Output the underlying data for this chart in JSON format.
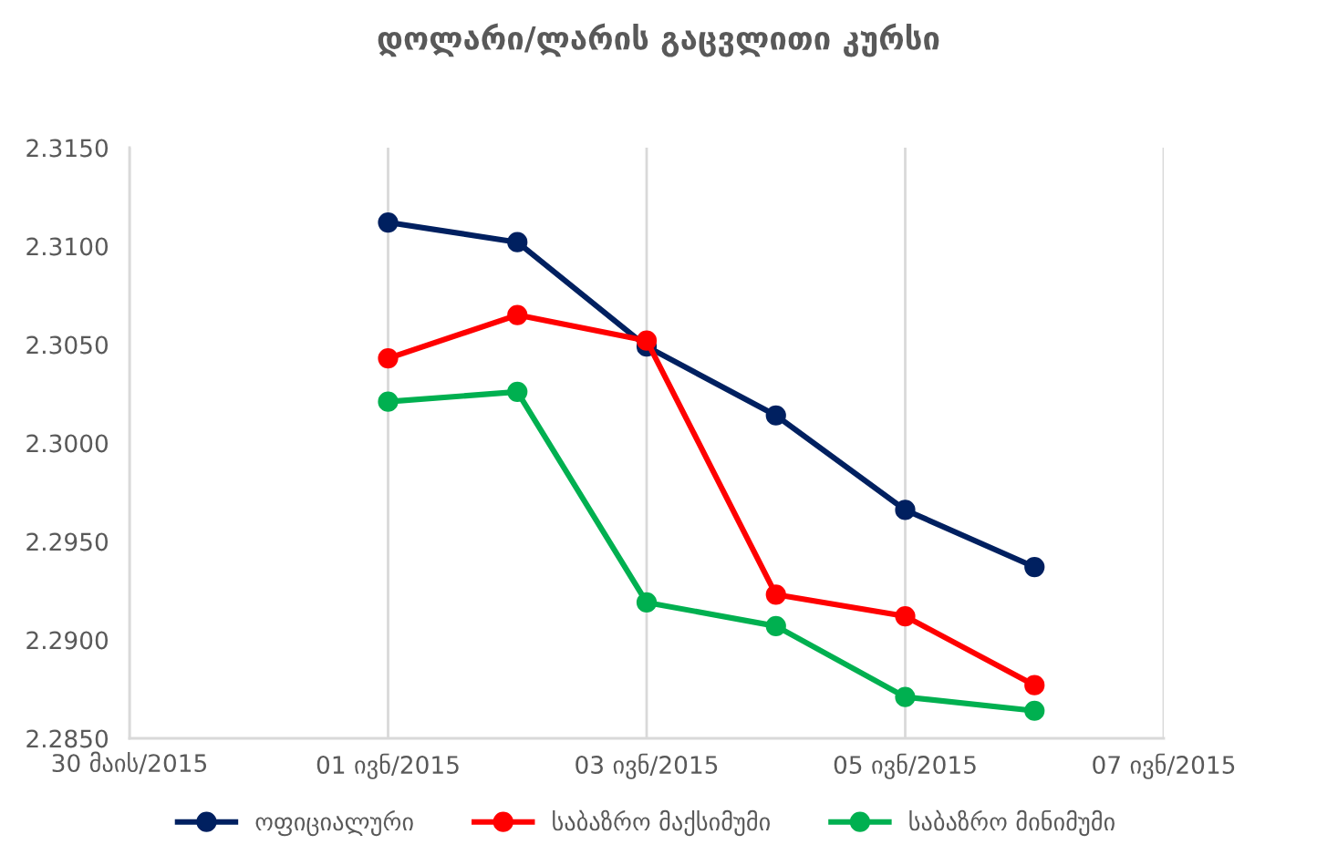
{
  "chart_data": {
    "type": "line",
    "title": "დოლარი/ლარის გაცვლითი კურსი",
    "x": [
      "2015-06-01",
      "2015-06-02",
      "2015-06-03",
      "2015-06-04",
      "2015-06-05",
      "2015-06-06"
    ],
    "series": [
      {
        "name": "ოფიციალური",
        "color": "#002060",
        "values": [
          2.3112,
          2.3102,
          2.3049,
          2.3014,
          2.2966,
          2.2937
        ]
      },
      {
        "name": "საბაზრო მაქსიმუმი",
        "color": "#ff0000",
        "values": [
          2.3043,
          2.3065,
          2.3052,
          2.2923,
          2.2912,
          2.2877
        ]
      },
      {
        "name": "საბაზრო მინიმუმი",
        "color": "#00b050",
        "values": [
          2.3021,
          2.3026,
          2.2919,
          2.2907,
          2.2871,
          2.2864
        ]
      }
    ],
    "xlim": [
      "2015-05-30",
      "2015-06-07"
    ],
    "xticks": [
      {
        "value": "2015-05-30",
        "label": "30 მაის/2015"
      },
      {
        "value": "2015-06-01",
        "label": "01 ივნ/2015"
      },
      {
        "value": "2015-06-03",
        "label": "03 ივნ/2015"
      },
      {
        "value": "2015-06-05",
        "label": "05 ივნ/2015"
      },
      {
        "value": "2015-06-07",
        "label": "07 ივნ/2015"
      }
    ],
    "ylim": [
      2.285,
      2.315
    ],
    "yticks": [
      {
        "value": 2.285,
        "label": "2.2850"
      },
      {
        "value": 2.29,
        "label": "2.2900"
      },
      {
        "value": 2.295,
        "label": "2.2950"
      },
      {
        "value": 2.3,
        "label": "2.3000"
      },
      {
        "value": 2.305,
        "label": "2.3050"
      },
      {
        "value": 2.31,
        "label": "2.3100"
      },
      {
        "value": 2.315,
        "label": "2.3150"
      }
    ],
    "grid": "x",
    "legend": "bottom",
    "marker": "circle",
    "line_style": "solid"
  }
}
